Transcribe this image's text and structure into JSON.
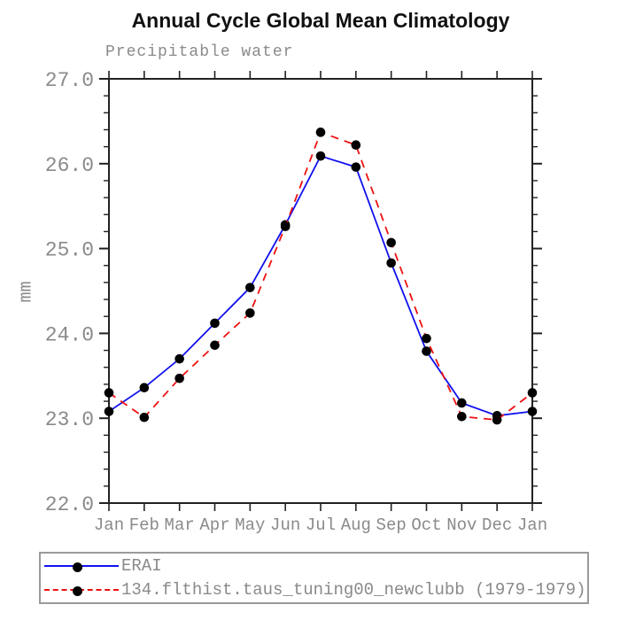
{
  "title": "Annual Cycle Global Mean Climatology",
  "subtitle": "Precipitable water",
  "ylabel": "mm",
  "colors": {
    "axis": "#222222",
    "erai_blue": "#1111ee",
    "model_red": "#ee1111",
    "marker_black": "#000000",
    "label_gray": "#8a8a8a",
    "legend_border": "#9a9a9a"
  },
  "legend": {
    "items": [
      {
        "label": "ERAI",
        "color": "#1111ee",
        "line_style": "solid",
        "marker": "black-dot"
      },
      {
        "label": "134.flthist.taus_tuning00_newclubb (1979-1979)",
        "color": "#ee1111",
        "line_style": "dashed",
        "marker": "black-dot"
      }
    ]
  },
  "chart_data": {
    "type": "line",
    "title": "Annual Cycle Global Mean Climatology",
    "subtitle": "Precipitable water",
    "ylabel": "mm",
    "x_categories": [
      "Jan",
      "Feb",
      "Mar",
      "Apr",
      "May",
      "Jun",
      "Jul",
      "Aug",
      "Sep",
      "Oct",
      "Nov",
      "Dec",
      "Jan"
    ],
    "ylim": [
      22.0,
      27.0
    ],
    "ytick_labels": [
      "27.0",
      "26.0",
      "25.0",
      "24.0",
      "23.0",
      "22.0"
    ],
    "yminor_interval": 0.2,
    "grid": "off",
    "legend_position": "bottom-left-box",
    "series": [
      {
        "name": "ERAI",
        "color": "#1111ee",
        "dash": "solid",
        "marker": "black-dot",
        "values": [
          23.08,
          23.36,
          23.7,
          24.12,
          24.54,
          25.28,
          26.09,
          25.96,
          24.83,
          23.79,
          23.18,
          23.03,
          23.08
        ]
      },
      {
        "name": "134.flthist.taus_tuning00_newclubb (1979-1979)",
        "color": "#ee1111",
        "dash": "dashed",
        "marker": "black-dot",
        "values": [
          23.3,
          23.01,
          23.47,
          23.86,
          24.24,
          25.26,
          26.37,
          26.22,
          25.07,
          23.94,
          23.02,
          22.98,
          23.3
        ]
      }
    ]
  }
}
